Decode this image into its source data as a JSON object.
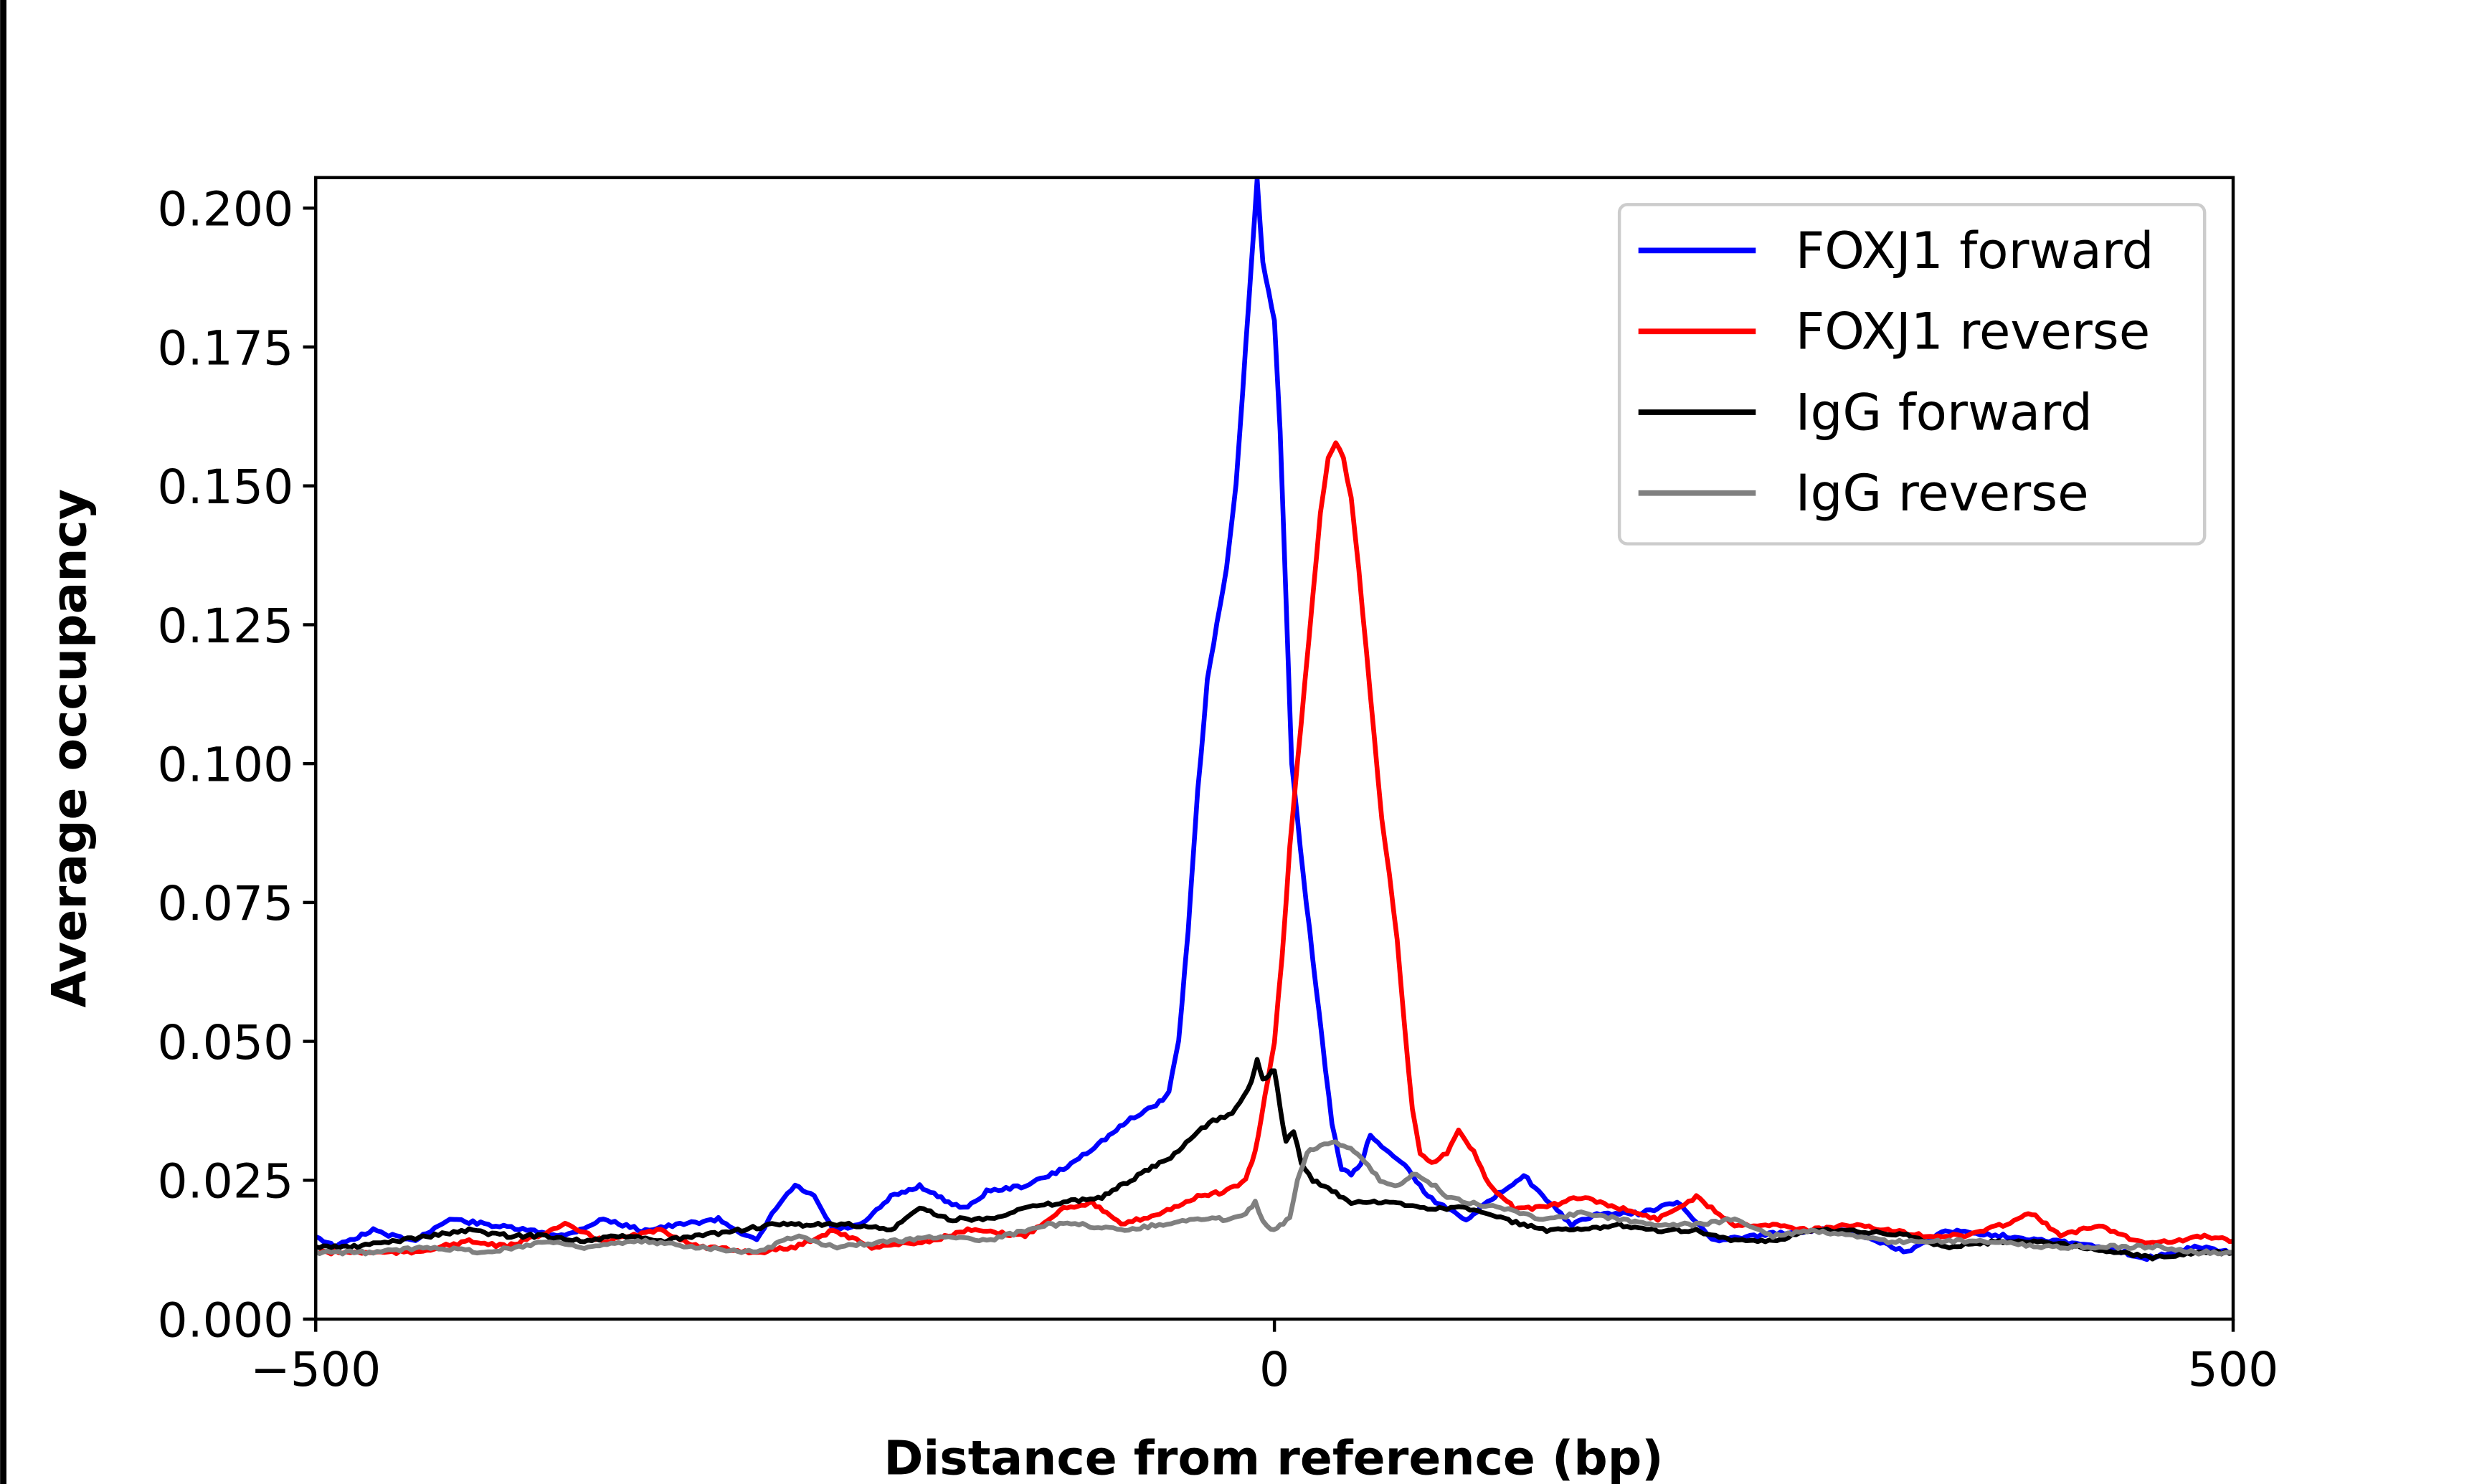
{
  "chart_data": {
    "type": "line",
    "title": "",
    "xlabel": "Distance from reference (bp)",
    "ylabel": "Average occupancy",
    "xlim": [
      -500,
      500
    ],
    "ylim": [
      0,
      0.2055
    ],
    "xticks": [
      -500,
      0,
      500
    ],
    "xtick_labels": [
      "−500",
      "0",
      "500"
    ],
    "yticks": [
      0,
      0.025,
      0.05,
      0.075,
      0.1,
      0.125,
      0.15,
      0.175,
      0.2
    ],
    "ytick_labels": [
      "0.000",
      "0.025",
      "0.050",
      "0.075",
      "0.100",
      "0.125",
      "0.150",
      "0.175",
      "0.200"
    ],
    "grid": false,
    "legend_position": "top-right",
    "series": [
      {
        "name": "FOXJ1 forward",
        "color": "#0000ff",
        "points": [
          [
            -500,
            0.015
          ],
          [
            -490,
            0.013
          ],
          [
            -470,
            0.016
          ],
          [
            -450,
            0.014
          ],
          [
            -430,
            0.018
          ],
          [
            -410,
            0.017
          ],
          [
            -390,
            0.016
          ],
          [
            -370,
            0.015
          ],
          [
            -350,
            0.018
          ],
          [
            -330,
            0.016
          ],
          [
            -310,
            0.017
          ],
          [
            -290,
            0.018
          ],
          [
            -270,
            0.014
          ],
          [
            -260,
            0.02
          ],
          [
            -250,
            0.024
          ],
          [
            -240,
            0.022
          ],
          [
            -230,
            0.016
          ],
          [
            -215,
            0.017
          ],
          [
            -200,
            0.022
          ],
          [
            -185,
            0.024
          ],
          [
            -170,
            0.021
          ],
          [
            -160,
            0.02
          ],
          [
            -150,
            0.023
          ],
          [
            -130,
            0.024
          ],
          [
            -110,
            0.027
          ],
          [
            -90,
            0.032
          ],
          [
            -75,
            0.036
          ],
          [
            -60,
            0.039
          ],
          [
            -55,
            0.041
          ],
          [
            -50,
            0.05
          ],
          [
            -45,
            0.07
          ],
          [
            -40,
            0.095
          ],
          [
            -35,
            0.115
          ],
          [
            -30,
            0.125
          ],
          [
            -25,
            0.135
          ],
          [
            -20,
            0.15
          ],
          [
            -15,
            0.175
          ],
          [
            -12,
            0.19
          ],
          [
            -9,
            0.205
          ],
          [
            -6,
            0.19
          ],
          [
            -3,
            0.185
          ],
          [
            0,
            0.18
          ],
          [
            3,
            0.16
          ],
          [
            6,
            0.13
          ],
          [
            9,
            0.1
          ],
          [
            12,
            0.09
          ],
          [
            15,
            0.08
          ],
          [
            20,
            0.065
          ],
          [
            25,
            0.05
          ],
          [
            30,
            0.035
          ],
          [
            35,
            0.027
          ],
          [
            40,
            0.026
          ],
          [
            45,
            0.028
          ],
          [
            50,
            0.033
          ],
          [
            60,
            0.03
          ],
          [
            70,
            0.027
          ],
          [
            80,
            0.022
          ],
          [
            90,
            0.02
          ],
          [
            100,
            0.018
          ],
          [
            115,
            0.022
          ],
          [
            130,
            0.026
          ],
          [
            140,
            0.022
          ],
          [
            155,
            0.017
          ],
          [
            170,
            0.019
          ],
          [
            190,
            0.019
          ],
          [
            210,
            0.021
          ],
          [
            230,
            0.014
          ],
          [
            250,
            0.015
          ],
          [
            280,
            0.016
          ],
          [
            300,
            0.016
          ],
          [
            330,
            0.012
          ],
          [
            350,
            0.016
          ],
          [
            380,
            0.015
          ],
          [
            410,
            0.014
          ],
          [
            430,
            0.013
          ],
          [
            455,
            0.011
          ],
          [
            480,
            0.013
          ],
          [
            500,
            0.012
          ]
        ]
      },
      {
        "name": "FOXJ1 reverse",
        "color": "#ff0000",
        "points": [
          [
            -500,
            0.012
          ],
          [
            -470,
            0.012
          ],
          [
            -450,
            0.012
          ],
          [
            -420,
            0.014
          ],
          [
            -400,
            0.013
          ],
          [
            -370,
            0.017
          ],
          [
            -350,
            0.014
          ],
          [
            -320,
            0.016
          ],
          [
            -300,
            0.013
          ],
          [
            -270,
            0.012
          ],
          [
            -250,
            0.013
          ],
          [
            -230,
            0.016
          ],
          [
            -210,
            0.013
          ],
          [
            -180,
            0.014
          ],
          [
            -160,
            0.016
          ],
          [
            -130,
            0.015
          ],
          [
            -110,
            0.02
          ],
          [
            -95,
            0.021
          ],
          [
            -80,
            0.017
          ],
          [
            -60,
            0.019
          ],
          [
            -40,
            0.022
          ],
          [
            -25,
            0.023
          ],
          [
            -15,
            0.025
          ],
          [
            -10,
            0.03
          ],
          [
            -5,
            0.04
          ],
          [
            0,
            0.05
          ],
          [
            4,
            0.065
          ],
          [
            8,
            0.085
          ],
          [
            12,
            0.1
          ],
          [
            16,
            0.115
          ],
          [
            20,
            0.13
          ],
          [
            24,
            0.145
          ],
          [
            28,
            0.155
          ],
          [
            32,
            0.158
          ],
          [
            36,
            0.155
          ],
          [
            40,
            0.148
          ],
          [
            44,
            0.135
          ],
          [
            48,
            0.12
          ],
          [
            52,
            0.105
          ],
          [
            56,
            0.09
          ],
          [
            60,
            0.08
          ],
          [
            64,
            0.068
          ],
          [
            68,
            0.052
          ],
          [
            72,
            0.038
          ],
          [
            76,
            0.03
          ],
          [
            82,
            0.028
          ],
          [
            90,
            0.03
          ],
          [
            96,
            0.034
          ],
          [
            104,
            0.03
          ],
          [
            112,
            0.024
          ],
          [
            125,
            0.02
          ],
          [
            140,
            0.02
          ],
          [
            160,
            0.022
          ],
          [
            180,
            0.02
          ],
          [
            200,
            0.018
          ],
          [
            220,
            0.022
          ],
          [
            240,
            0.017
          ],
          [
            260,
            0.017
          ],
          [
            280,
            0.016
          ],
          [
            300,
            0.017
          ],
          [
            320,
            0.016
          ],
          [
            340,
            0.015
          ],
          [
            360,
            0.015
          ],
          [
            380,
            0.017
          ],
          [
            395,
            0.019
          ],
          [
            410,
            0.015
          ],
          [
            430,
            0.017
          ],
          [
            450,
            0.014
          ],
          [
            470,
            0.014
          ],
          [
            485,
            0.015
          ],
          [
            500,
            0.014
          ]
        ]
      },
      {
        "name": "IgG forward",
        "color": "#000000",
        "points": [
          [
            -500,
            0.013
          ],
          [
            -480,
            0.013
          ],
          [
            -460,
            0.014
          ],
          [
            -440,
            0.015
          ],
          [
            -420,
            0.016
          ],
          [
            -400,
            0.015
          ],
          [
            -380,
            0.015
          ],
          [
            -360,
            0.014
          ],
          [
            -340,
            0.015
          ],
          [
            -320,
            0.014
          ],
          [
            -300,
            0.015
          ],
          [
            -280,
            0.016
          ],
          [
            -260,
            0.017
          ],
          [
            -240,
            0.017
          ],
          [
            -220,
            0.017
          ],
          [
            -200,
            0.016
          ],
          [
            -185,
            0.02
          ],
          [
            -170,
            0.018
          ],
          [
            -150,
            0.018
          ],
          [
            -130,
            0.02
          ],
          [
            -110,
            0.021
          ],
          [
            -90,
            0.022
          ],
          [
            -75,
            0.025
          ],
          [
            -60,
            0.028
          ],
          [
            -50,
            0.03
          ],
          [
            -40,
            0.034
          ],
          [
            -30,
            0.036
          ],
          [
            -22,
            0.037
          ],
          [
            -16,
            0.04
          ],
          [
            -12,
            0.043
          ],
          [
            -9,
            0.047
          ],
          [
            -6,
            0.043
          ],
          [
            -3,
            0.044
          ],
          [
            0,
            0.045
          ],
          [
            3,
            0.038
          ],
          [
            6,
            0.032
          ],
          [
            10,
            0.034
          ],
          [
            14,
            0.028
          ],
          [
            20,
            0.025
          ],
          [
            30,
            0.023
          ],
          [
            40,
            0.021
          ],
          [
            60,
            0.021
          ],
          [
            80,
            0.02
          ],
          [
            100,
            0.02
          ],
          [
            120,
            0.018
          ],
          [
            140,
            0.016
          ],
          [
            160,
            0.016
          ],
          [
            180,
            0.017
          ],
          [
            200,
            0.016
          ],
          [
            220,
            0.016
          ],
          [
            240,
            0.014
          ],
          [
            260,
            0.014
          ],
          [
            280,
            0.016
          ],
          [
            300,
            0.016
          ],
          [
            330,
            0.015
          ],
          [
            350,
            0.013
          ],
          [
            380,
            0.014
          ],
          [
            400,
            0.014
          ],
          [
            420,
            0.013
          ],
          [
            440,
            0.012
          ],
          [
            460,
            0.011
          ],
          [
            480,
            0.012
          ],
          [
            500,
            0.012
          ]
        ]
      },
      {
        "name": "IgG reverse",
        "color": "#808080",
        "points": [
          [
            -500,
            0.012
          ],
          [
            -470,
            0.012
          ],
          [
            -440,
            0.013
          ],
          [
            -410,
            0.012
          ],
          [
            -380,
            0.014
          ],
          [
            -360,
            0.013
          ],
          [
            -330,
            0.014
          ],
          [
            -300,
            0.013
          ],
          [
            -270,
            0.012
          ],
          [
            -250,
            0.015
          ],
          [
            -230,
            0.013
          ],
          [
            -200,
            0.014
          ],
          [
            -170,
            0.015
          ],
          [
            -150,
            0.014
          ],
          [
            -120,
            0.017
          ],
          [
            -100,
            0.017
          ],
          [
            -80,
            0.016
          ],
          [
            -60,
            0.017
          ],
          [
            -40,
            0.018
          ],
          [
            -25,
            0.018
          ],
          [
            -15,
            0.019
          ],
          [
            -10,
            0.021
          ],
          [
            -6,
            0.018
          ],
          [
            -2,
            0.016
          ],
          [
            3,
            0.017
          ],
          [
            8,
            0.018
          ],
          [
            12,
            0.025
          ],
          [
            17,
            0.03
          ],
          [
            22,
            0.031
          ],
          [
            30,
            0.032
          ],
          [
            38,
            0.031
          ],
          [
            45,
            0.029
          ],
          [
            55,
            0.025
          ],
          [
            65,
            0.024
          ],
          [
            72,
            0.026
          ],
          [
            80,
            0.025
          ],
          [
            90,
            0.022
          ],
          [
            100,
            0.021
          ],
          [
            120,
            0.02
          ],
          [
            140,
            0.018
          ],
          [
            160,
            0.019
          ],
          [
            180,
            0.018
          ],
          [
            200,
            0.017
          ],
          [
            220,
            0.017
          ],
          [
            240,
            0.018
          ],
          [
            260,
            0.015
          ],
          [
            280,
            0.016
          ],
          [
            300,
            0.015
          ],
          [
            320,
            0.014
          ],
          [
            340,
            0.014
          ],
          [
            360,
            0.014
          ],
          [
            380,
            0.014
          ],
          [
            400,
            0.013
          ],
          [
            420,
            0.013
          ],
          [
            440,
            0.013
          ],
          [
            460,
            0.013
          ],
          [
            480,
            0.012
          ],
          [
            500,
            0.012
          ]
        ]
      }
    ]
  }
}
